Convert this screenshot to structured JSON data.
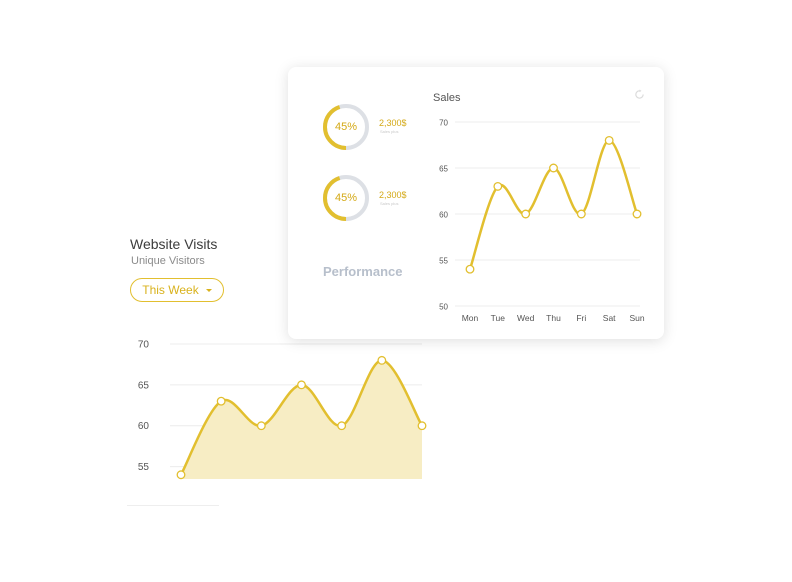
{
  "website_visits": {
    "title": "Website Visits",
    "subtitle": "Unique Visitors",
    "period_button": "This Week",
    "caret_icon": "chevron-down-icon"
  },
  "card": {
    "gauges": [
      {
        "percent_label": "45%",
        "percent": 45,
        "amount": "2,300$",
        "amount_sub": "Sales plus"
      },
      {
        "percent_label": "45%",
        "percent": 45,
        "amount": "2,300$",
        "amount_sub": "Sales plus"
      }
    ],
    "performance_label": "Performance",
    "refresh_icon": "refresh-icon"
  },
  "colors": {
    "accent": "#e2bf2f",
    "accent_fill": "#f7edc4",
    "track": "#dde0e5",
    "grid": "#ececec"
  },
  "chart_data": [
    {
      "type": "area",
      "categories": [
        "Mon",
        "Tue",
        "Wed",
        "Thu",
        "Fri",
        "Sat",
        "Sun"
      ],
      "values": [
        54,
        63,
        60,
        65,
        60,
        68,
        60
      ],
      "y_ticks": [
        55,
        60,
        65,
        70
      ],
      "ylim": [
        52.5,
        70
      ],
      "show_x_labels": false,
      "grid": true
    },
    {
      "type": "line",
      "title": "Sales",
      "categories": [
        "Mon",
        "Tue",
        "Wed",
        "Thu",
        "Fri",
        "Sat",
        "Sun"
      ],
      "values": [
        54,
        63,
        60,
        65,
        60,
        68,
        60
      ],
      "y_ticks": [
        50,
        55,
        60,
        65,
        70
      ],
      "ylim": [
        50,
        70
      ],
      "show_x_labels": true,
      "grid": true
    }
  ]
}
